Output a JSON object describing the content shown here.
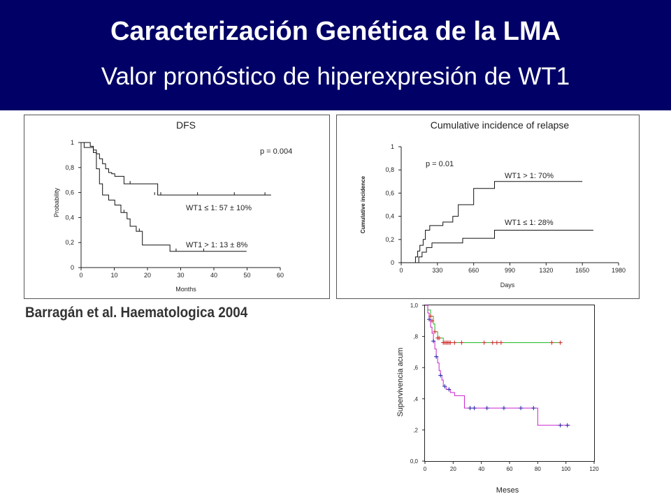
{
  "slide": {
    "title": "Caracterización Genética de la LMA",
    "subtitle": "Valor pronóstico de hiperexpresión de WT1",
    "citation": "Barragán et al. Haematologica 2004",
    "header_color": "#000066"
  },
  "chart_data": [
    {
      "type": "line",
      "subtype": "kaplan-meier",
      "title": "DFS",
      "xlabel": "Months",
      "ylabel": "Probability",
      "xlim": [
        0,
        65
      ],
      "ylim": [
        0,
        1
      ],
      "xticks": [
        "0",
        "10",
        "20",
        "30",
        "40",
        "50",
        "60"
      ],
      "yticks": [
        "0",
        "0,2",
        "0,4",
        "0,6",
        "0,8",
        "1"
      ],
      "annotations": [
        "p = 0.004"
      ],
      "series": [
        {
          "name": "WT1 ≤ 1: 57 ± 10%",
          "x": [
            0,
            3,
            4,
            5,
            6,
            7,
            8,
            9,
            10,
            11,
            14,
            25,
            30,
            62
          ],
          "y": [
            1.0,
            0.97,
            0.94,
            0.91,
            0.87,
            0.83,
            0.79,
            0.76,
            0.75,
            0.73,
            0.67,
            0.58,
            0.58,
            0.58
          ]
        },
        {
          "name": "WT1 > 1: 13 ± 8%",
          "x": [
            0,
            1,
            4,
            5,
            6,
            7,
            9,
            11,
            13,
            15,
            16,
            18,
            20,
            29,
            54
          ],
          "y": [
            1.0,
            0.96,
            0.92,
            0.79,
            0.67,
            0.58,
            0.54,
            0.5,
            0.44,
            0.39,
            0.33,
            0.29,
            0.18,
            0.13,
            0.13
          ]
        }
      ]
    },
    {
      "type": "line",
      "subtype": "cumulative-incidence",
      "title": "Cumulative incidence of relapse",
      "xlabel": "Days",
      "ylabel": "Cumulative incidence",
      "xlim": [
        0,
        1980
      ],
      "ylim": [
        0,
        1
      ],
      "xticks": [
        "0",
        "330",
        "660",
        "990",
        "1320",
        "1650",
        "1980"
      ],
      "yticks": [
        "0",
        "0,2",
        "0,4",
        "0,6",
        "0,8",
        "1"
      ],
      "annotations": [
        "p = 0.01"
      ],
      "series": [
        {
          "name": "WT1 > 1: 70%",
          "x": [
            0,
            100,
            130,
            150,
            170,
            200,
            220,
            260,
            380,
            470,
            520,
            660,
            850,
            1650
          ],
          "y": [
            0,
            0,
            0.05,
            0.1,
            0.15,
            0.2,
            0.28,
            0.32,
            0.35,
            0.4,
            0.5,
            0.64,
            0.7,
            0.7
          ]
        },
        {
          "name": "WT1 ≤ 1: 28%",
          "x": [
            0,
            140,
            160,
            190,
            230,
            280,
            560,
            850,
            1750
          ],
          "y": [
            0,
            0,
            0.05,
            0.09,
            0.13,
            0.17,
            0.21,
            0.28,
            0.28
          ]
        }
      ]
    },
    {
      "type": "line",
      "subtype": "kaplan-meier",
      "title": "",
      "xlabel": "Meses",
      "ylabel": "Supervivencia acum",
      "xlim": [
        0,
        120
      ],
      "ylim": [
        0,
        1
      ],
      "xticks": [
        "0",
        "20",
        "40",
        "60",
        "80",
        "100",
        "120"
      ],
      "yticks": [
        "0,0",
        ",2",
        ",4",
        ",6",
        ",8",
        "1,0"
      ],
      "series": [
        {
          "name": "",
          "color": "#22bb22",
          "censor_color": "#cc2222",
          "x": [
            0,
            2,
            4,
            6,
            7,
            9,
            13,
            96
          ],
          "y": [
            1.0,
            0.97,
            0.93,
            0.88,
            0.83,
            0.79,
            0.76,
            0.76
          ],
          "censored": [
            [
              4,
              0.93
            ],
            [
              5,
              0.9
            ],
            [
              7,
              0.83
            ],
            [
              9,
              0.79
            ],
            [
              10,
              0.79
            ],
            [
              13,
              0.76
            ],
            [
              14,
              0.76
            ],
            [
              15,
              0.76
            ],
            [
              16,
              0.76
            ],
            [
              17,
              0.76
            ],
            [
              18,
              0.76
            ],
            [
              21,
              0.76
            ],
            [
              26,
              0.76
            ],
            [
              42,
              0.76
            ],
            [
              48,
              0.76
            ],
            [
              51,
              0.76
            ],
            [
              54,
              0.76
            ],
            [
              90,
              0.76
            ],
            [
              96,
              0.76
            ]
          ]
        },
        {
          "name": "",
          "color": "#cc22cc",
          "censor_color": "#2222aa",
          "x": [
            0,
            2,
            3,
            4,
            5,
            6,
            7,
            8,
            9,
            10,
            11,
            12,
            13,
            15,
            18,
            21,
            28,
            80,
            103
          ],
          "y": [
            1.0,
            0.95,
            0.91,
            0.86,
            0.82,
            0.77,
            0.72,
            0.67,
            0.63,
            0.58,
            0.55,
            0.52,
            0.48,
            0.46,
            0.44,
            0.42,
            0.34,
            0.23,
            0.23
          ],
          "censored": [
            [
              3,
              0.91
            ],
            [
              6,
              0.77
            ],
            [
              8,
              0.67
            ],
            [
              11,
              0.55
            ],
            [
              14,
              0.48
            ],
            [
              17,
              0.46
            ],
            [
              32,
              0.34
            ],
            [
              35,
              0.34
            ],
            [
              44,
              0.34
            ],
            [
              56,
              0.34
            ],
            [
              68,
              0.34
            ],
            [
              77,
              0.34
            ],
            [
              96,
              0.23
            ],
            [
              101,
              0.23
            ]
          ]
        }
      ]
    }
  ]
}
